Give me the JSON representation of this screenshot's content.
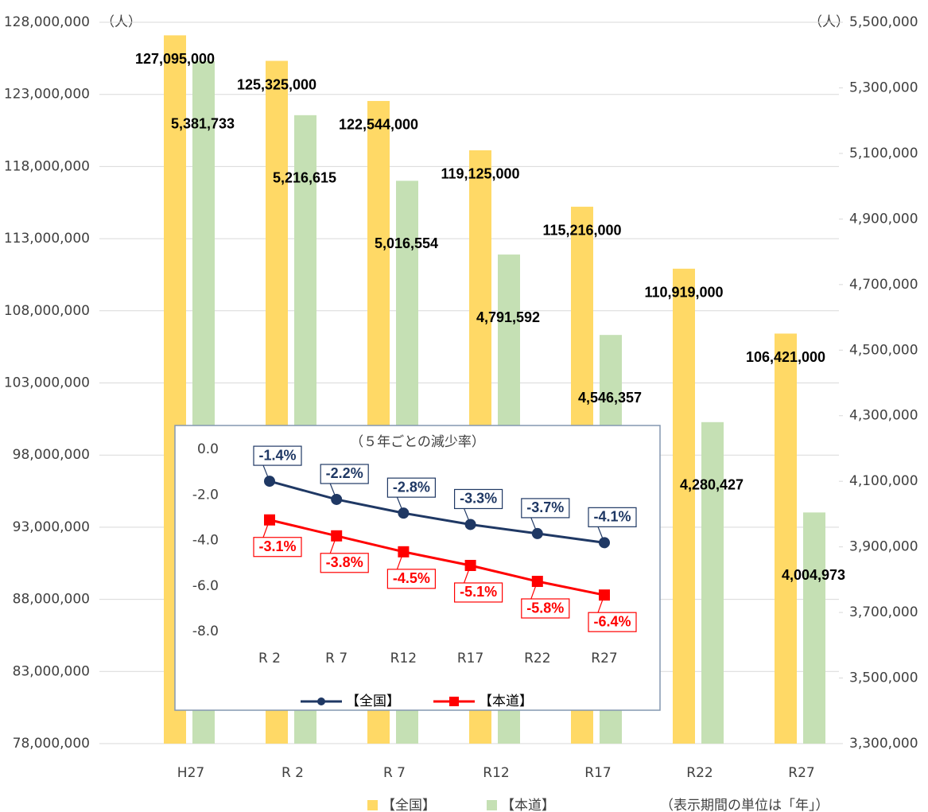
{
  "chart_data": [
    {
      "type": "bar",
      "y_unit": "（人）",
      "y2_unit": "（人）",
      "note": "（表示期間の単位は「年」）",
      "categories": [
        "H27",
        "R 2",
        "R 7",
        "R12",
        "R17",
        "R22",
        "R27"
      ],
      "series": [
        {
          "name": "【全国】",
          "color": "#ffd966",
          "values": [
            127095000,
            125325000,
            122544000,
            119125000,
            115216000,
            110919000,
            106421000
          ],
          "value_labels": [
            "127,095,000",
            "125,325,000",
            "122,544,000",
            "119,125,000",
            "115,216,000",
            "110,919,000",
            "106,421,000"
          ]
        },
        {
          "name": "【本道】",
          "color": "#c5e0b4",
          "axis": "y2",
          "values": [
            5381733,
            5216615,
            5016554,
            4791592,
            4546357,
            4280427,
            4004973
          ],
          "value_labels": [
            "5,381,733",
            "5,216,615",
            "5,016,554",
            "4,791,592",
            "4,546,357",
            "4,280,427",
            "4,004,973"
          ]
        }
      ],
      "ylim": [
        78000000,
        128000000
      ],
      "yticks": [
        {
          "value": 78000000,
          "label": "78,000,000"
        },
        {
          "value": 83000000,
          "label": "83,000,000"
        },
        {
          "value": 88000000,
          "label": "88,000,000"
        },
        {
          "value": 93000000,
          "label": "93,000,000"
        },
        {
          "value": 98000000,
          "label": "98,000,000"
        },
        {
          "value": 103000000,
          "label": "103,000,000"
        },
        {
          "value": 108000000,
          "label": "108,000,000"
        },
        {
          "value": 113000000,
          "label": "113,000,000"
        },
        {
          "value": 118000000,
          "label": "118,000,000"
        },
        {
          "value": 123000000,
          "label": "123,000,000"
        },
        {
          "value": 128000000,
          "label": "128,000,000"
        }
      ],
      "y2lim": [
        3300000,
        5500000
      ],
      "y2ticks": [
        {
          "value": 3300000,
          "label": "3,300,000"
        },
        {
          "value": 3500000,
          "label": "3,500,000"
        },
        {
          "value": 3700000,
          "label": "3,700,000"
        },
        {
          "value": 3900000,
          "label": "3,900,000"
        },
        {
          "value": 4100000,
          "label": "4,100,000"
        },
        {
          "value": 4300000,
          "label": "4,300,000"
        },
        {
          "value": 4500000,
          "label": "4,500,000"
        },
        {
          "value": 4700000,
          "label": "4,700,000"
        },
        {
          "value": 4900000,
          "label": "4,900,000"
        },
        {
          "value": 5100000,
          "label": "5,100,000"
        },
        {
          "value": 5300000,
          "label": "5,300,000"
        },
        {
          "value": 5500000,
          "label": "5,500,000"
        }
      ],
      "grid": true
    },
    {
      "type": "line",
      "title": "（５年ごとの減少率）",
      "categories": [
        "R 2",
        "R 7",
        "R12",
        "R17",
        "R22",
        "R27"
      ],
      "series": [
        {
          "name": "【全国】",
          "color": "#1f3864",
          "marker": "circle",
          "values": [
            -1.4,
            -2.2,
            -2.8,
            -3.3,
            -3.7,
            -4.1
          ],
          "value_labels": [
            "-1.4%",
            "-2.2%",
            "-2.8%",
            "-3.3%",
            "-3.7%",
            "-4.1%"
          ]
        },
        {
          "name": "【本道】",
          "color": "#ff0000",
          "marker": "square",
          "values": [
            -3.1,
            -3.8,
            -4.5,
            -5.1,
            -5.8,
            -6.4
          ],
          "value_labels": [
            "-3.1%",
            "-3.8%",
            "-4.5%",
            "-5.1%",
            "-5.8%",
            "-6.4%"
          ]
        }
      ],
      "ylim": [
        -8,
        0
      ],
      "yticks": [
        {
          "value": 0,
          "label": "0.0"
        },
        {
          "value": -2,
          "label": "-2.0"
        },
        {
          "value": -4,
          "label": "-4.0"
        },
        {
          "value": -6,
          "label": "-6.0"
        },
        {
          "value": -8,
          "label": "-8.0"
        }
      ]
    }
  ]
}
